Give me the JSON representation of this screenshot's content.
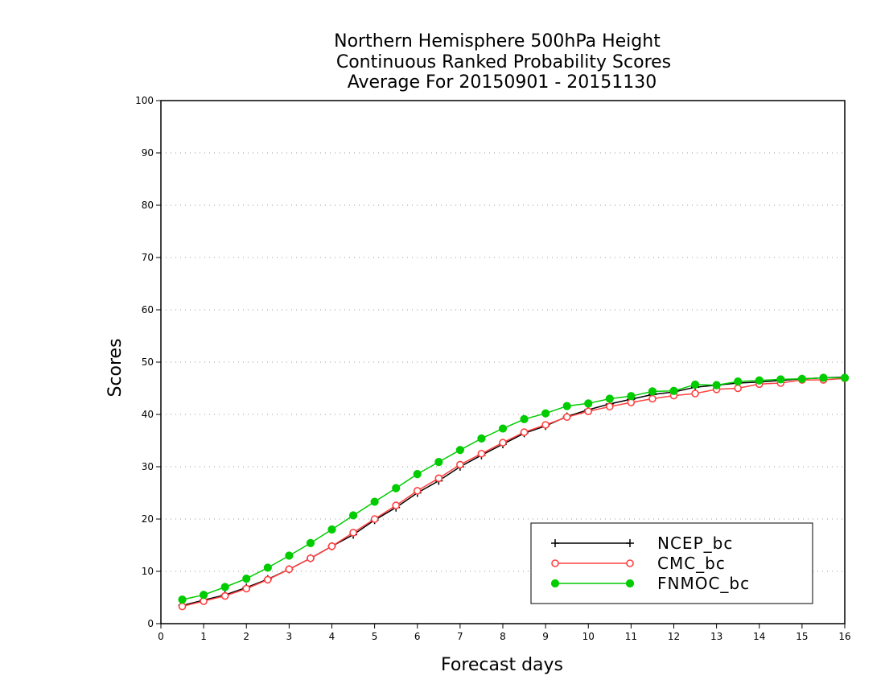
{
  "chart_data": {
    "type": "line",
    "title_lines": [
      "Northern Hemisphere 500hPa Height",
      "Continuous Ranked Probability Scores",
      "Average For 20150901 - 20151130"
    ],
    "xlabel": "Forecast days",
    "ylabel": "Scores",
    "xlim": [
      0,
      16
    ],
    "ylim": [
      0,
      100
    ],
    "xticks": [
      "0",
      "1",
      "2",
      "3",
      "4",
      "5",
      "6",
      "7",
      "8",
      "9",
      "10",
      "11",
      "12",
      "13",
      "14",
      "15",
      "16"
    ],
    "yticks": [
      "0",
      "10",
      "20",
      "30",
      "40",
      "50",
      "60",
      "70",
      "80",
      "90",
      "100"
    ],
    "grid": "horizontal dotted",
    "legend_position": "bottom-right",
    "x": [
      0.5,
      1,
      1.5,
      2,
      2.5,
      3,
      3.5,
      4,
      4.5,
      5,
      5.5,
      6,
      6.5,
      7,
      7.5,
      8,
      8.5,
      9,
      9.5,
      10,
      10.5,
      11,
      11.5,
      12,
      12.5,
      13,
      13.5,
      14,
      14.5,
      15,
      15.5,
      16
    ],
    "series": [
      {
        "name": "NCEP_bc",
        "color": "#000000",
        "marker": "plus",
        "values": [
          3.5,
          4.5,
          5.5,
          6.9,
          8.5,
          10.4,
          12.5,
          14.8,
          17.0,
          19.8,
          22.2,
          25.0,
          27.3,
          30.0,
          32.2,
          34.3,
          36.4,
          37.8,
          39.6,
          40.9,
          42.0,
          42.9,
          43.8,
          44.3,
          45.2,
          45.6,
          46.0,
          46.2,
          46.5,
          46.8,
          47.0,
          47.1
        ]
      },
      {
        "name": "CMC_bc",
        "color": "#ff4040",
        "marker": "open-circle",
        "values": [
          3.3,
          4.3,
          5.3,
          6.7,
          8.4,
          10.4,
          12.5,
          14.8,
          17.4,
          20.0,
          22.6,
          25.4,
          27.8,
          30.4,
          32.5,
          34.6,
          36.6,
          38.0,
          39.5,
          40.6,
          41.5,
          42.3,
          43.0,
          43.6,
          44.0,
          44.8,
          45.0,
          45.8,
          46.0,
          46.6,
          46.6,
          46.9
        ]
      },
      {
        "name": "FNMOC_bc",
        "color": "#00cc00",
        "marker": "filled-circle",
        "values": [
          4.6,
          5.5,
          7.0,
          8.6,
          10.7,
          13.0,
          15.4,
          18.0,
          20.7,
          23.3,
          25.9,
          28.6,
          30.9,
          33.2,
          35.4,
          37.3,
          39.1,
          40.2,
          41.6,
          42.1,
          43.0,
          43.5,
          44.4,
          44.5,
          45.7,
          45.6,
          46.3,
          46.5,
          46.7,
          46.8,
          47.0,
          47.0
        ]
      }
    ]
  }
}
